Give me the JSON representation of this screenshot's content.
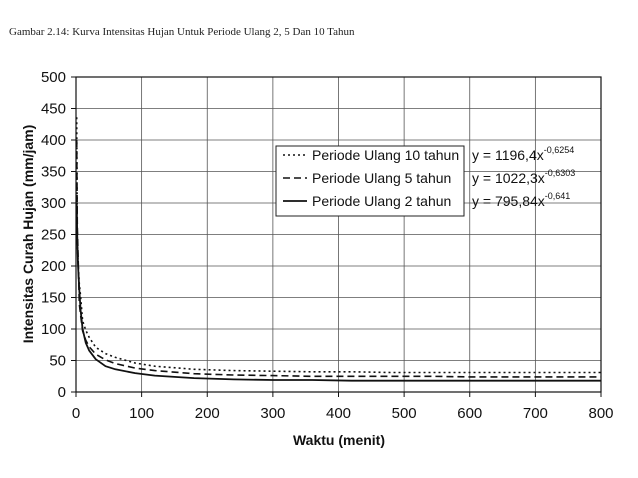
{
  "caption": "Gambar 2.14:  Kurva Intensitas Hujan Untuk Periode Ulang 2, 5 Dan 10 Tahun",
  "colors": {
    "line": "#111111",
    "grid": "#555555",
    "background": "#ffffff"
  },
  "chart_data": {
    "type": "line",
    "title": "",
    "xlabel": "Waktu (menit)",
    "ylabel": "Intensitas Curah Hujan (mm/jam)",
    "xlim": [
      0,
      800
    ],
    "ylim": [
      0,
      500
    ],
    "xticks": [
      "0",
      "100",
      "200",
      "300",
      "400",
      "500",
      "600",
      "700",
      "800"
    ],
    "yticks": [
      "0",
      "50",
      "100",
      "150",
      "200",
      "250",
      "300",
      "350",
      "400",
      "450",
      "500"
    ],
    "grid": true,
    "legend_position": "top-right",
    "series": [
      {
        "name": "Periode Ulang 10 tahun",
        "style": "dotted",
        "equation_base": "y = 1196,4x",
        "equation_exp": "-0,6254",
        "x": [
          1,
          2,
          3,
          5,
          7,
          10,
          15,
          20,
          30,
          45,
          60,
          90,
          120,
          180,
          240,
          300,
          360,
          420,
          480,
          540,
          600,
          660,
          720,
          800
        ],
        "y": [
          436,
          241,
          208,
          172,
          152,
          113,
          98,
          87,
          71,
          61,
          55,
          46,
          41,
          36,
          34,
          33,
          32,
          32,
          31,
          31,
          31,
          31,
          31,
          31
        ]
      },
      {
        "name": "Periode Ulang 5 tahun",
        "style": "dashed",
        "equation_base": "y = 1022,3x",
        "equation_exp": "-0,6303",
        "x": [
          1,
          2,
          3,
          5,
          7,
          10,
          15,
          20,
          30,
          45,
          60,
          90,
          120,
          180,
          240,
          300,
          360,
          420,
          480,
          540,
          600,
          660,
          720,
          800
        ],
        "y": [
          400,
          262,
          222,
          140,
          122,
          97,
          82,
          72,
          60,
          51,
          45,
          38,
          34,
          29,
          27,
          26,
          25,
          25,
          25,
          25,
          24,
          24,
          24,
          24
        ]
      },
      {
        "name": "Periode Ulang 2 tahun",
        "style": "solid",
        "equation_base": "y = 795,84x",
        "equation_exp": "-0,641",
        "x": [
          1,
          2,
          3,
          5,
          7,
          10,
          15,
          20,
          30,
          45,
          60,
          90,
          120,
          180,
          240,
          300,
          360,
          420,
          480,
          540,
          600,
          660,
          720,
          800
        ],
        "y": [
          300,
          242,
          202,
          162,
          130,
          100,
          78,
          66,
          52,
          41,
          36,
          30,
          26,
          22,
          20,
          19,
          19,
          18,
          18,
          18,
          18,
          18,
          18,
          18
        ]
      }
    ]
  }
}
